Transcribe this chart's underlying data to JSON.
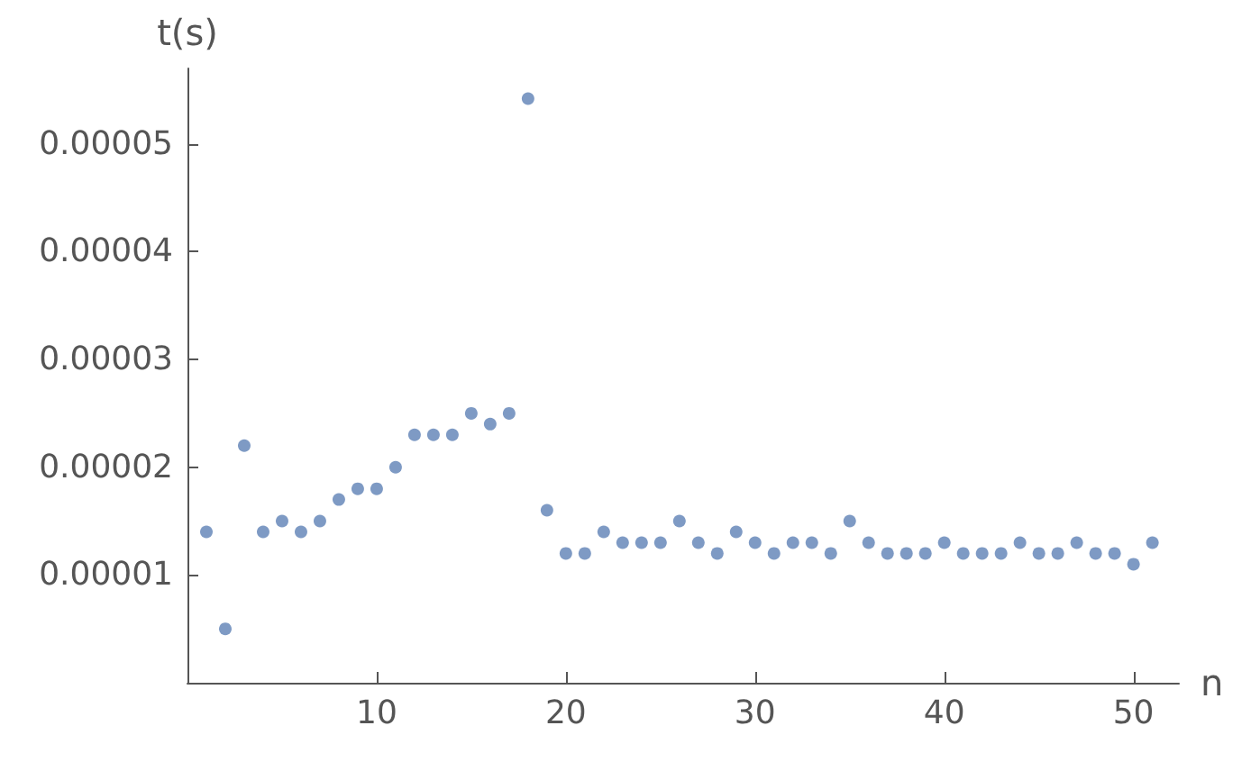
{
  "chart_data": {
    "type": "scatter",
    "xlabel": "n",
    "ylabel": "t(s)",
    "x": [
      1,
      2,
      3,
      4,
      5,
      6,
      7,
      8,
      9,
      10,
      11,
      12,
      13,
      14,
      15,
      16,
      17,
      18,
      19,
      20,
      21,
      22,
      23,
      24,
      25,
      26,
      27,
      28,
      29,
      30,
      31,
      32,
      33,
      34,
      35,
      36,
      37,
      38,
      39,
      40,
      41,
      42,
      43,
      44,
      45,
      46,
      47,
      48,
      49,
      50,
      51
    ],
    "series": [
      {
        "color": "#5e81b5",
        "values": [
          1.4e-05,
          5e-06,
          2.2e-05,
          1.4e-05,
          1.5e-05,
          1.4e-05,
          1.5e-05,
          1.7e-05,
          1.8e-05,
          1.8e-05,
          2e-05,
          2.3e-05,
          2.3e-05,
          2.3e-05,
          2.5e-05,
          2.4e-05,
          2.5e-05,
          5.42e-05,
          1.6e-05,
          1.2e-05,
          1.2e-05,
          1.4e-05,
          1.3e-05,
          1.3e-05,
          1.3e-05,
          1.5e-05,
          1.3e-05,
          1.2e-05,
          1.4e-05,
          1.3e-05,
          1.2e-05,
          1.3e-05,
          1.3e-05,
          1.2e-05,
          1.5e-05,
          1.3e-05,
          1.2e-05,
          1.2e-05,
          1.2e-05,
          1.3e-05,
          1.2e-05,
          1.2e-05,
          1.2e-05,
          1.3e-05,
          1.2e-05,
          1.2e-05,
          1.3e-05,
          1.2e-05,
          1.2e-05,
          1.1e-05,
          1.3e-05
        ]
      }
    ],
    "xlim": [
      0,
      52.4
    ],
    "ylim": [
      0,
      5.7e-05
    ],
    "xticks": [
      10,
      20,
      30,
      40,
      50
    ],
    "yticks": [
      {
        "value": 1e-05,
        "label": "0.00001"
      },
      {
        "value": 2e-05,
        "label": "0.00002"
      },
      {
        "value": 3e-05,
        "label": "0.00003"
      },
      {
        "value": 4e-05,
        "label": "0.00004"
      },
      {
        "value": 5e-05,
        "label": "0.00005"
      }
    ],
    "grid": false,
    "marker": "circle"
  }
}
